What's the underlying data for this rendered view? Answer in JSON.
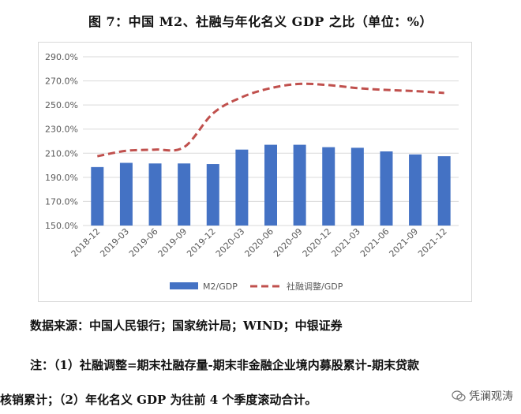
{
  "figure": {
    "title": "图 7：中国 M2、社融与年化名义 GDP 之比（单位：%）"
  },
  "chart_data": {
    "type": "bar",
    "categories": [
      "2018-12",
      "2019-03",
      "2019-06",
      "2019-09",
      "2019-12",
      "2020-03",
      "2020-06",
      "2020-09",
      "2020-12",
      "2021-03",
      "2021-06",
      "2021-09",
      "2021-12"
    ],
    "series": [
      {
        "name": "M2/GDP",
        "kind": "bar",
        "color": "#4472c4",
        "values": [
          198.5,
          202.0,
          201.5,
          201.5,
          201.0,
          213.0,
          217.0,
          217.0,
          215.0,
          214.5,
          211.5,
          209.0,
          207.5
        ]
      },
      {
        "name": "社融调整/GDP",
        "kind": "line",
        "style": "dashed",
        "color": "#c0504d",
        "values": [
          207.5,
          212.0,
          213.0,
          215.0,
          243.0,
          256.5,
          264.0,
          267.5,
          266.5,
          264.0,
          262.5,
          261.5,
          260.0
        ]
      }
    ],
    "yticks": [
      "150.0%",
      "170.0%",
      "190.0%",
      "210.0%",
      "230.0%",
      "250.0%",
      "270.0%",
      "290.0%"
    ],
    "ylim": [
      150,
      290
    ],
    "grid": true,
    "legend": "bottom"
  },
  "footer": {
    "source": "数据来源：中国人民银行；国家统计局；WIND；中银证券",
    "note_line1": "注：（1）社融调整=期末社融存量-期末非金融企业境内募股累计-期末贷款",
    "note_line2": "核销累计；（2）年化名义 GDP 为往前 4 个季度滚动合计。",
    "watermark": "凭澜观涛"
  }
}
